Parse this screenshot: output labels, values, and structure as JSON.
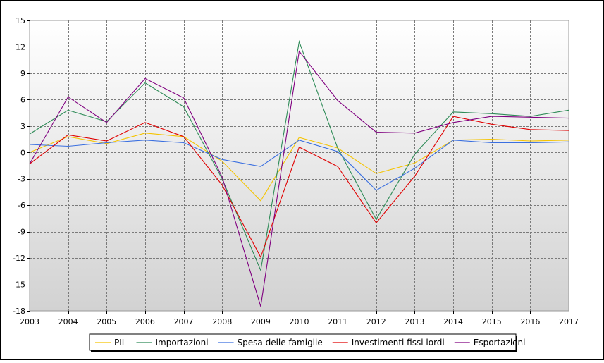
{
  "chart_data": {
    "type": "line",
    "title": "",
    "xlabel": "",
    "ylabel": "",
    "x": [
      "2003",
      "2004",
      "2005",
      "2006",
      "2007",
      "2008",
      "2009",
      "2010",
      "2011",
      "2012",
      "2013",
      "2014",
      "2015",
      "2016",
      "2017"
    ],
    "ylim": [
      -18,
      15
    ],
    "yticks": [
      15,
      12,
      9,
      6,
      3,
      0,
      -3,
      -6,
      -9,
      -12,
      -15,
      -18
    ],
    "grid": true,
    "legend_position": "bottom-center",
    "series": [
      {
        "name": "PIL",
        "color": "#f5c400",
        "values": [
          0.0,
          1.8,
          1.0,
          2.2,
          1.8,
          -1.0,
          -5.5,
          1.7,
          0.5,
          -2.4,
          -1.2,
          1.4,
          1.5,
          1.3,
          1.4
        ]
      },
      {
        "name": "Importazioni",
        "color": "#2e8b57",
        "values": [
          2.1,
          4.8,
          3.5,
          7.9,
          5.2,
          -3.0,
          -13.4,
          12.6,
          0.5,
          -7.6,
          -0.2,
          4.6,
          4.4,
          4.1,
          4.8
        ]
      },
      {
        "name": "Spesa delle famiglie",
        "color": "#3a6fe0",
        "values": [
          0.9,
          0.7,
          1.1,
          1.4,
          1.1,
          -0.8,
          -1.6,
          1.4,
          0.1,
          -4.3,
          -1.8,
          1.4,
          1.1,
          1.1,
          1.2
        ]
      },
      {
        "name": "Investimenti fissi lordi",
        "color": "#e00000",
        "values": [
          -1.3,
          2.0,
          1.3,
          3.4,
          1.8,
          -3.7,
          -11.9,
          0.6,
          -1.6,
          -8.0,
          -2.7,
          4.1,
          3.2,
          2.6,
          2.5
        ]
      },
      {
        "name": "Esportazioni",
        "color": "#800080",
        "values": [
          -1.3,
          6.3,
          3.4,
          8.4,
          6.2,
          -2.8,
          -17.5,
          11.5,
          5.9,
          2.3,
          2.2,
          3.4,
          4.1,
          4.0,
          3.9
        ]
      }
    ]
  }
}
